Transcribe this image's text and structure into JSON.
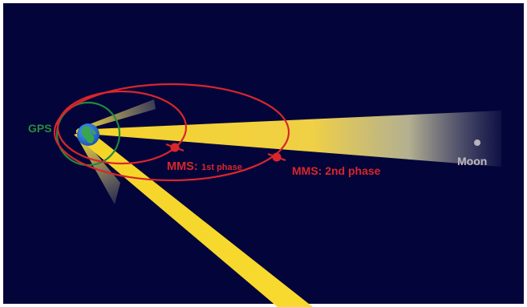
{
  "labels": {
    "gps": "GPS",
    "mms_prefix": "MMS:",
    "mms_phase1": "1st phase",
    "mms_phase2": "MMS: 2nd phase",
    "moon": "Moon"
  },
  "colors": {
    "space": "#03053a",
    "border": "#ffffff",
    "beam": "#f5d42a",
    "orbit_red": "#d9262b",
    "gps_green": "#1f8a3a",
    "gps_label": "#2a8a3c",
    "moon_dot": "#b8b4b8",
    "moon_label": "#bdb9bd",
    "earth_ocean": "#1f6fd0",
    "earth_land": "#3aa64a"
  }
}
